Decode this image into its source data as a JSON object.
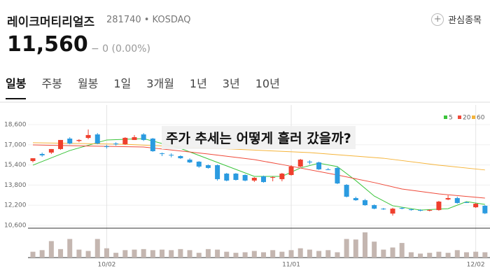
{
  "header": {
    "name": "레이크머티리얼즈",
    "code": "281740 • KOSDAQ",
    "favorite": "관심종목",
    "price": "11,560",
    "change": "− 0 (0.00%)",
    "tabs": [
      "일봉",
      "주봉",
      "월봉",
      "1일",
      "3개월",
      "1년",
      "3년",
      "10년"
    ],
    "selected_tab": 0
  },
  "chart_data": {
    "type": "candlestick",
    "annotation": "주가 추세는 어떻게 흘러 갔을까?",
    "categories": [
      null,
      null,
      null,
      null,
      null,
      null,
      null,
      null,
      "10/02",
      null,
      null,
      null,
      null,
      null,
      null,
      null,
      null,
      null,
      null,
      null,
      null,
      null,
      null,
      null,
      null,
      null,
      null,
      null,
      "11/01",
      null,
      null,
      null,
      null,
      null,
      null,
      null,
      null,
      null,
      null,
      null,
      null,
      null,
      null,
      null,
      null,
      null,
      null,
      null,
      "12/02",
      null
    ],
    "ylim": [
      10380,
      19710
    ],
    "yticks": [
      {
        "value": 18600,
        "label": "18,600"
      },
      {
        "value": 17000,
        "label": "17,000"
      },
      {
        "value": 15400,
        "label": "15,400"
      },
      {
        "value": 13800,
        "label": "13,800"
      },
      {
        "value": 12200,
        "label": "12,200"
      },
      {
        "value": 10600,
        "label": "10,600"
      }
    ],
    "up_color": "#ef3f2d",
    "down_color": "#2b9be0",
    "open": [
      15710,
      16270,
      16380,
      16660,
      17490,
      17300,
      17540,
      17820,
      16880,
      17100,
      17040,
      17380,
      17820,
      17490,
      16320,
      16200,
      16100,
      15820,
      15660,
      15380,
      15380,
      14710,
      14710,
      14600,
      14160,
      14490,
      14380,
      14270,
      14600,
      15270,
      15660,
      15600,
      15050,
      15160,
      13820,
      12770,
      12600,
      12210,
      11930,
      11540,
      11990,
      11880,
      11820,
      11770,
      11820,
      12660,
      12770,
      12440,
      12040,
      12160
    ],
    "high": [
      15930,
      16380,
      16660,
      17380,
      17600,
      17440,
      18210,
      17930,
      17000,
      17200,
      17600,
      17770,
      17930,
      17540,
      16380,
      16320,
      16160,
      15930,
      15700,
      15440,
      15440,
      14770,
      14760,
      14650,
      14430,
      14550,
      14490,
      14770,
      15380,
      15880,
      15770,
      15660,
      15160,
      15270,
      13880,
      12880,
      12700,
      12270,
      11990,
      12000,
      12050,
      11930,
      11880,
      11880,
      12550,
      12990,
      12880,
      12490,
      12380,
      12210
    ],
    "low": [
      15600,
      16050,
      16270,
      16600,
      17040,
      17200,
      17440,
      17040,
      16700,
      16930,
      16990,
      17380,
      17300,
      16440,
      16100,
      16000,
      15880,
      15550,
      15170,
      15100,
      14150,
      14100,
      14160,
      14100,
      14050,
      13990,
      14100,
      14100,
      14550,
      15220,
      15440,
      15000,
      14990,
      13880,
      12820,
      12550,
      12160,
      11880,
      11830,
      11380,
      11880,
      11770,
      11720,
      11720,
      11770,
      12600,
      12320,
      12380,
      11990,
      11500
    ],
    "close": [
      15930,
      16160,
      16660,
      17380,
      17100,
      17380,
      17770,
      17100,
      16820,
      17040,
      17550,
      17600,
      17380,
      16490,
      16270,
      16160,
      15930,
      15600,
      15270,
      15160,
      14270,
      14160,
      14210,
      14160,
      14380,
      14040,
      14430,
      14710,
      15270,
      15820,
      15600,
      15050,
      15000,
      13930,
      12880,
      12600,
      12210,
      11930,
      11880,
      11930,
      11930,
      11820,
      11770,
      11820,
      12490,
      12770,
      12380,
      12430,
      12320,
      11560
    ],
    "volume": [
      22,
      28,
      62,
      32,
      70,
      30,
      25,
      70,
      35,
      18,
      28,
      30,
      32,
      28,
      30,
      28,
      32,
      28,
      18,
      32,
      30,
      22,
      18,
      20,
      25,
      20,
      28,
      22,
      28,
      35,
      30,
      25,
      28,
      20,
      70,
      68,
      95,
      60,
      30,
      38,
      55,
      20,
      15,
      18,
      22,
      18,
      28,
      20,
      22,
      20
    ],
    "volume_lim": [
      0,
      100
    ],
    "volume_color": "#c4b6b0",
    "moving_averages": [
      {
        "name": "5",
        "color": "#3ac43a",
        "index": [
          0,
          4,
          8,
          12,
          16,
          20,
          24,
          27,
          29,
          31,
          33,
          35,
          37,
          39,
          42,
          45,
          47,
          49
        ],
        "values": [
          15380,
          16540,
          17380,
          17490,
          16710,
          15600,
          14490,
          14490,
          15160,
          15540,
          15270,
          14160,
          12930,
          12160,
          11820,
          11930,
          12490,
          12270
        ]
      },
      {
        "name": "20",
        "color": "#ef4a3a",
        "index": [
          0,
          6,
          12,
          19,
          24,
          27,
          33,
          37,
          40,
          44,
          49
        ],
        "values": [
          16990,
          16900,
          16820,
          16270,
          15820,
          15430,
          14600,
          14000,
          13490,
          13100,
          12770
        ]
      },
      {
        "name": "60",
        "color": "#f5b43a",
        "index": [
          0,
          10,
          20,
          30,
          38,
          44,
          49
        ],
        "values": [
          17160,
          17040,
          16710,
          16380,
          15930,
          15380,
          15000
        ]
      }
    ]
  }
}
